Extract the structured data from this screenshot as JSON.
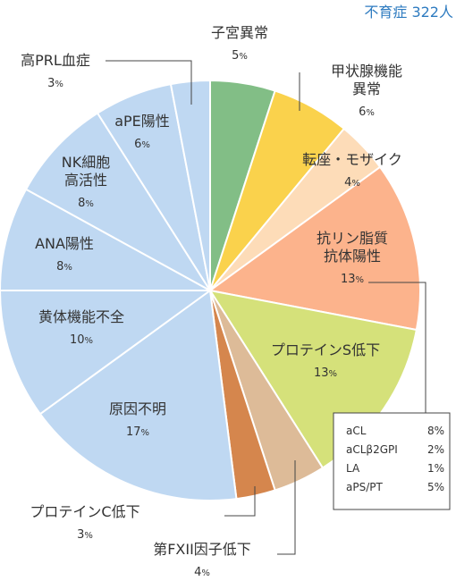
{
  "header": {
    "population": "不育症 322人"
  },
  "chart_data": {
    "type": "pie",
    "start": "top, clockwise",
    "slices": [
      {
        "lines": [
          "子宮異常"
        ],
        "value": 5,
        "color": "#82be86"
      },
      {
        "lines": [
          "甲状腺機能",
          "異常"
        ],
        "value": 6,
        "color": "#fad24c"
      },
      {
        "lines": [
          "転座・モザイク"
        ],
        "value": 4,
        "color": "#fddcb8"
      },
      {
        "lines": [
          "抗リン脂質",
          "抗体陽性"
        ],
        "value": 13,
        "color": "#fcb38c"
      },
      {
        "lines": [
          "プロテインS低下"
        ],
        "value": 13,
        "color": "#d5e17a"
      },
      {
        "lines": [
          "第FXII因子低下"
        ],
        "value": 4,
        "color": "#ddbb98"
      },
      {
        "lines": [
          "プロテインC低下"
        ],
        "value": 3,
        "color": "#d5864d"
      },
      {
        "lines": [
          "原因不明"
        ],
        "value": 17,
        "color": "#bfd8f2"
      },
      {
        "lines": [
          "黄体機能不全"
        ],
        "value": 10,
        "color": "#bfd8f2"
      },
      {
        "lines": [
          "ANA陽性"
        ],
        "value": 8,
        "color": "#bfd8f2"
      },
      {
        "lines": [
          "NK細胞",
          "高活性"
        ],
        "value": 8,
        "color": "#bfd8f2"
      },
      {
        "lines": [
          "aPE陽性"
        ],
        "value": 6,
        "color": "#bfd8f2"
      },
      {
        "lines": [
          "高PRL血症"
        ],
        "value": 3,
        "color": "#bfd8f2"
      }
    ],
    "unit": "%",
    "breakdown": {
      "parent": "抗リン脂質 抗体陽性",
      "rows": [
        {
          "name": "aCL",
          "value": "8%"
        },
        {
          "name": "aCLβ2GPI",
          "value": "2%"
        },
        {
          "name": "LA",
          "value": "1%"
        },
        {
          "name": "aPS/PT",
          "value": "5%"
        }
      ]
    }
  }
}
